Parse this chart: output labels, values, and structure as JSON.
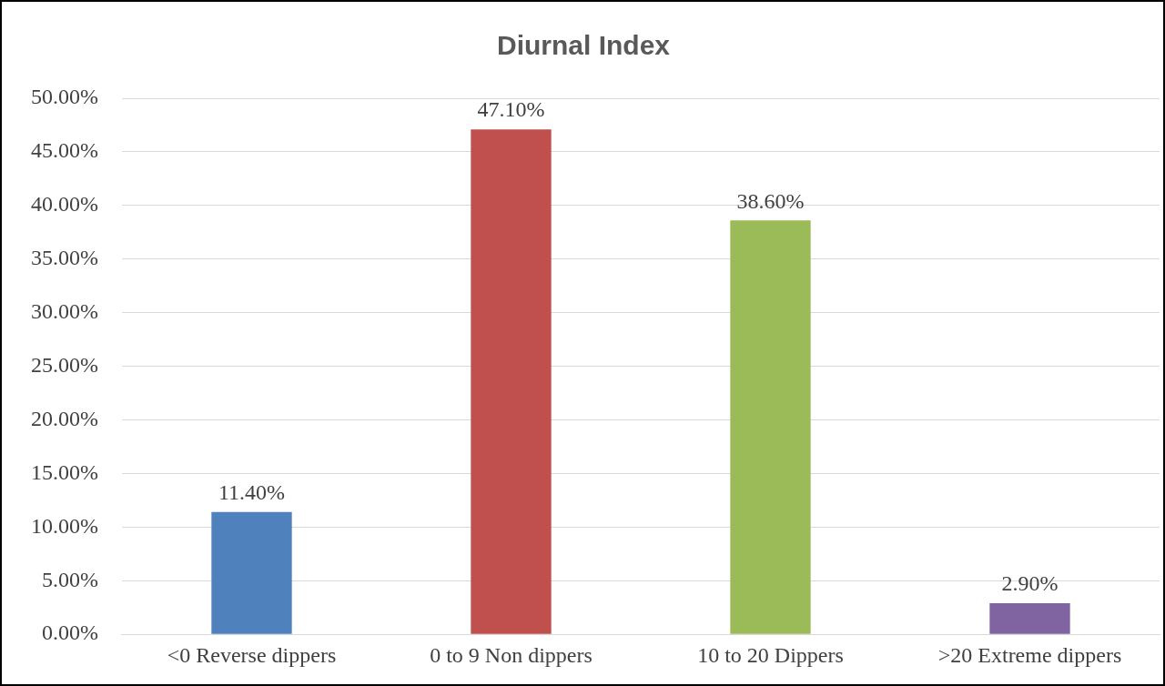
{
  "chart_data": {
    "type": "bar",
    "title": "Diurnal Index",
    "categories": [
      "<0 Reverse dippers",
      "0 to 9 Non dippers",
      "10 to 20 Dippers",
      ">20 Extreme dippers"
    ],
    "values": [
      11.4,
      47.1,
      38.6,
      2.9
    ],
    "colors": [
      "#4f81bd",
      "#c0504d",
      "#9bbb59",
      "#8064a2"
    ],
    "value_labels": [
      "11.40%",
      "47.10%",
      "38.60%",
      "2.90%"
    ],
    "ylim": [
      0,
      50
    ],
    "yticks": [
      {
        "value": 0,
        "label": "0.00%"
      },
      {
        "value": 5,
        "label": "5.00%"
      },
      {
        "value": 10,
        "label": "10.00%"
      },
      {
        "value": 15,
        "label": "15.00%"
      },
      {
        "value": 20,
        "label": "20.00%"
      },
      {
        "value": 25,
        "label": "25.00%"
      },
      {
        "value": 30,
        "label": "30.00%"
      },
      {
        "value": 35,
        "label": "35.00%"
      },
      {
        "value": 40,
        "label": "40.00%"
      },
      {
        "value": 45,
        "label": "45.00%"
      },
      {
        "value": 50,
        "label": "50.00%"
      }
    ],
    "grid": "y",
    "legend": false
  }
}
